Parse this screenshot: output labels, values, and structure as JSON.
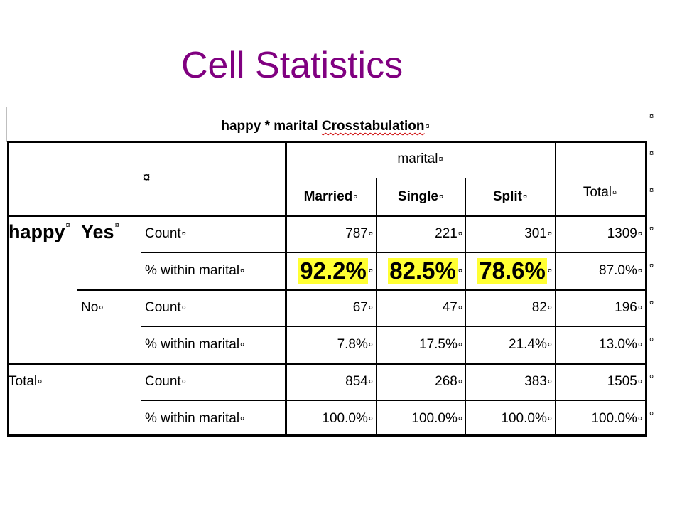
{
  "slide": {
    "title": "Cell Statistics"
  },
  "table": {
    "caption": "happy * marital Crosstabulation",
    "caption_parts": {
      "pre": "happy",
      "mid": " * marital ",
      "post": "Crosstabulation"
    },
    "corner_mark": "¤",
    "column_group": "marital",
    "columns": [
      "Married",
      "Single",
      "Split"
    ],
    "total_label": "Total",
    "row_var": "happy",
    "cell_mark": "¤",
    "rows": [
      {
        "group": "Yes",
        "stat": "Count",
        "values": [
          "787",
          "221",
          "301",
          "1309"
        ]
      },
      {
        "group": "",
        "stat": "% within marital",
        "values": [
          "92.2%",
          "82.5%",
          "78.6%",
          "87.0%"
        ]
      },
      {
        "group": "No",
        "stat": "Count",
        "values": [
          "67",
          "47",
          "82",
          "196"
        ]
      },
      {
        "group": "",
        "stat": "% within marital",
        "values": [
          "7.8%",
          "17.5%",
          "21.4%",
          "13.0%"
        ]
      },
      {
        "group": "Total",
        "stat": "Count",
        "values": [
          "854",
          "268",
          "383",
          "1505"
        ]
      },
      {
        "group": "",
        "stat": "% within marital",
        "values": [
          "100.0%",
          "100.0%",
          "100.0%",
          "100.0%"
        ]
      }
    ],
    "highlight_color": "#ffff33"
  },
  "colors": {
    "title": "#800080",
    "border": "#000000"
  }
}
